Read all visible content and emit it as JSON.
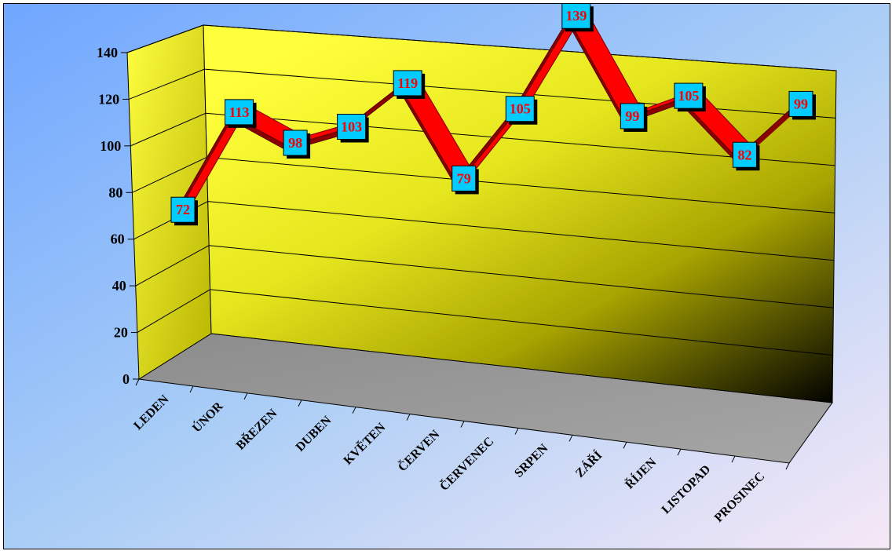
{
  "chart_data": {
    "type": "line",
    "title": "",
    "xlabel": "",
    "ylabel": "",
    "categories": [
      "LEDEN",
      "ÚNOR",
      "BŘEZEN",
      "DUBEN",
      "KVĚTEN",
      "ČERVEN",
      "ČERVENEC",
      "SRPEN",
      "ZÁŘÍ",
      "ŘÍJEN",
      "LISTOPAD",
      "PROSINEC"
    ],
    "series": [
      {
        "values": [
          72,
          113,
          98,
          103,
          119,
          79,
          105,
          139,
          99,
          105,
          82,
          99
        ]
      }
    ],
    "ylim": [
      0,
      140
    ],
    "yticks": [
      "0",
      "20",
      "40",
      "60",
      "80",
      "100",
      "120",
      "140"
    ],
    "three_d": true,
    "grid": true,
    "legend": "none",
    "colors": {
      "background_gradient": [
        "#6fa6ff",
        "#f6e8f6"
      ],
      "wall_gradient": [
        "#ffff40",
        "#000000"
      ],
      "floor": "#9a9a9a",
      "ribbon_front": "#ff0000",
      "ribbon_side": "#8b0000",
      "label_box": "#00ccff",
      "label_text": "#ff0000"
    }
  }
}
